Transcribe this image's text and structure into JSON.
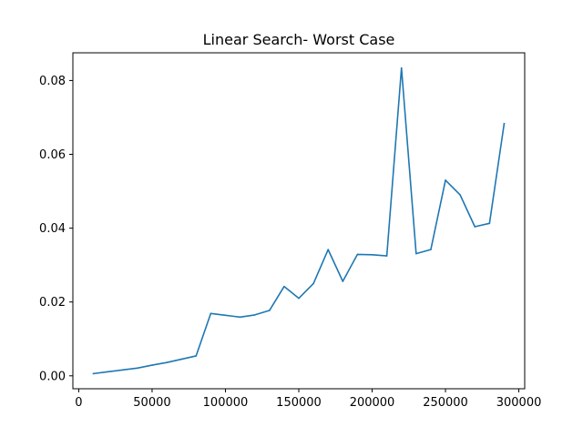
{
  "chart_data": {
    "type": "line",
    "title": "Linear Search- Worst Case",
    "xlabel": "",
    "ylabel": "",
    "xlim": [
      -4000,
      304000
    ],
    "ylim": [
      -0.0035,
      0.0875
    ],
    "x_ticks": [
      0,
      50000,
      100000,
      150000,
      200000,
      250000,
      300000
    ],
    "x_tick_labels": [
      "0",
      "50000",
      "100000",
      "150000",
      "200000",
      "250000",
      "300000"
    ],
    "y_ticks": [
      0.0,
      0.02,
      0.04,
      0.06,
      0.08
    ],
    "y_tick_labels": [
      "0.00",
      "0.02",
      "0.04",
      "0.06",
      "0.08"
    ],
    "grid": false,
    "line_color": "#1f77b4",
    "series": [
      {
        "x": [
          10000,
          20000,
          30000,
          40000,
          50000,
          60000,
          70000,
          80000,
          90000,
          100000,
          110000,
          120000,
          130000,
          140000,
          150000,
          160000,
          170000,
          180000,
          190000,
          200000,
          210000,
          220000,
          230000,
          240000,
          250000,
          260000,
          270000,
          280000,
          290000
        ],
        "y": [
          0.0006,
          0.0011,
          0.0016,
          0.0021,
          0.0029,
          0.0036,
          0.0045,
          0.0054,
          0.0169,
          0.0164,
          0.0159,
          0.0165,
          0.0177,
          0.0242,
          0.021,
          0.025,
          0.0342,
          0.0256,
          0.0329,
          0.0328,
          0.0325,
          0.0834,
          0.0331,
          0.0342,
          0.053,
          0.049,
          0.0404,
          0.0413,
          0.0683
        ]
      }
    ]
  }
}
